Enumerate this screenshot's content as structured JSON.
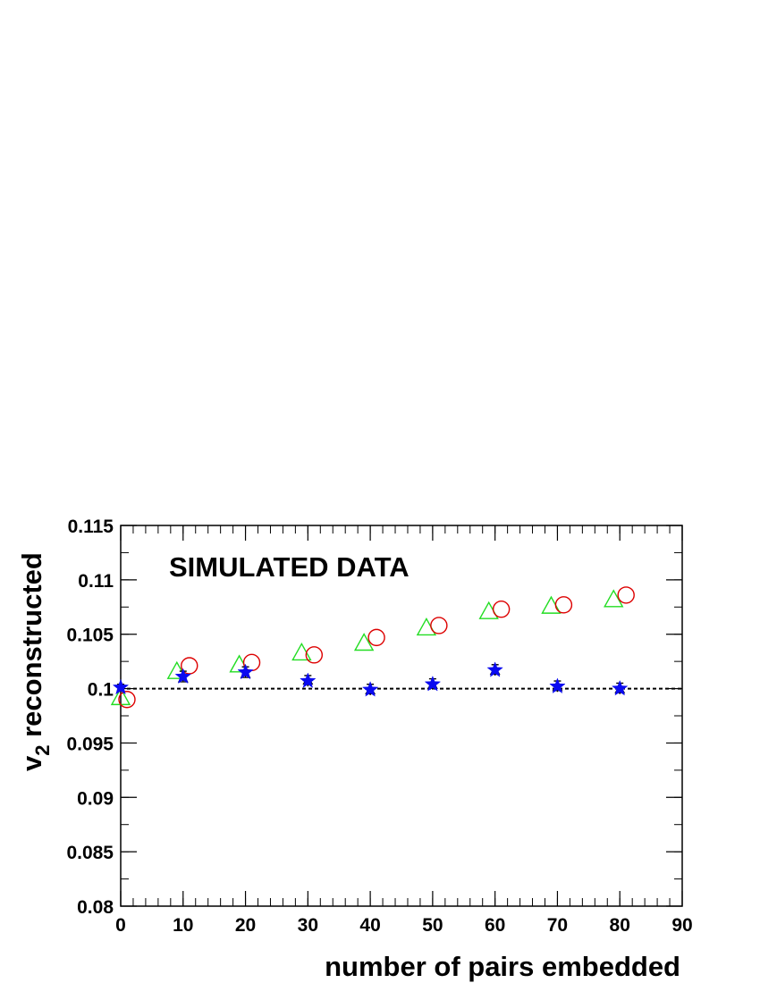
{
  "chart_data": {
    "type": "scatter",
    "title": "",
    "annotation": "SIMULATED DATA",
    "xlabel": "number of pairs embedded",
    "ylabel_main": "v",
    "ylabel_sub": "2",
    "ylabel_rest": " reconstructed",
    "xlim": [
      0,
      90
    ],
    "ylim": [
      0.08,
      0.115
    ],
    "x_ticks": [
      "0",
      "10",
      "20",
      "30",
      "40",
      "50",
      "60",
      "70",
      "80",
      "90"
    ],
    "y_ticks": [
      "0.08",
      "0.085",
      "0.09",
      "0.095",
      "0.1",
      "0.105",
      "0.11",
      "0.115"
    ],
    "grid": false,
    "reference_line": {
      "y": 0.1,
      "style": "dashed",
      "color": "#000000"
    },
    "series": [
      {
        "marker": "open-triangle",
        "color": "#22dd22",
        "x": [
          0,
          9,
          19,
          29,
          39,
          49,
          59,
          69,
          79
        ],
        "y": [
          0.0991,
          0.1015,
          0.1021,
          0.1032,
          0.1041,
          0.1055,
          0.107,
          0.1075,
          0.1081
        ]
      },
      {
        "marker": "open-circle",
        "color": "#dd0000",
        "x": [
          1,
          11,
          21,
          31,
          41,
          51,
          61,
          71,
          81
        ],
        "y": [
          0.099,
          0.1021,
          0.1024,
          0.1031,
          0.1047,
          0.1058,
          0.1073,
          0.1077,
          0.1086
        ]
      },
      {
        "marker": "open-triangle-small",
        "color": "#000000",
        "x": [
          10,
          20,
          30,
          40,
          50,
          60,
          70,
          80
        ],
        "y": [
          0.1009,
          0.1013,
          0.1007,
          0.0998,
          0.1003,
          0.1016,
          0.1001,
          0.0999
        ]
      },
      {
        "marker": "filled-star",
        "color": "#0a0af0",
        "x": [
          0,
          10,
          20,
          30,
          40,
          50,
          60,
          70,
          80
        ],
        "y": [
          0.1001,
          0.1011,
          0.1015,
          0.1007,
          0.0999,
          0.1004,
          0.1017,
          0.1002,
          0.1
        ],
        "yerr": [
          0.0003,
          0.0005,
          0.0005,
          0.0005,
          0.0005,
          0.0005,
          0.0005,
          0.0005,
          0.0005
        ]
      }
    ]
  }
}
